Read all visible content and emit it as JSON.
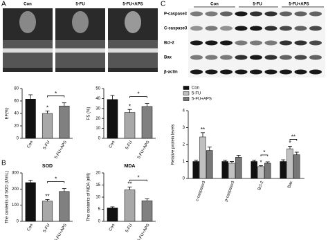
{
  "panels": [
    "A",
    "B",
    "C"
  ],
  "images": {
    "labels": [
      "Con",
      "5-FU",
      "5-FU+APS"
    ]
  },
  "blot": {
    "groups": [
      "Con",
      "5-FU",
      "5-FU+APS"
    ],
    "rows": [
      "P-caspase3",
      "C-caspase3",
      "Bcl-2",
      "Bax",
      "β-actin"
    ]
  },
  "chart_data": [
    {
      "type": "bar",
      "ylabel": "EF(%)",
      "categories": [
        "Con",
        "5-FU",
        "5-FU+APS"
      ],
      "values": [
        63,
        40,
        52
      ],
      "errors": [
        7,
        4,
        5
      ],
      "colors": [
        "#111111",
        "#a8a8a8",
        "#808080"
      ],
      "ylim": [
        0,
        80
      ],
      "yticks": [
        0,
        20,
        40,
        60,
        80
      ],
      "annotations": [
        "*",
        "*"
      ]
    },
    {
      "type": "bar",
      "ylabel": "FS (%)",
      "categories": [
        "Con",
        "5-FU",
        "5-FU+APS"
      ],
      "values": [
        39,
        26,
        32
      ],
      "errors": [
        4,
        3,
        3
      ],
      "colors": [
        "#111111",
        "#a8a8a8",
        "#808080"
      ],
      "ylim": [
        0,
        50
      ],
      "yticks": [
        0,
        10,
        20,
        30,
        40,
        50
      ],
      "annotations": [
        "*",
        "*"
      ]
    },
    {
      "type": "bar",
      "title": "SOD",
      "ylabel": "The contents of SOD (U/mL)",
      "categories": [
        "Con",
        "5-FU",
        "5-FU+APS"
      ],
      "values": [
        240,
        125,
        185
      ],
      "errors": [
        15,
        10,
        18
      ],
      "colors": [
        "#111111",
        "#a8a8a8",
        "#808080"
      ],
      "ylim": [
        0,
        300
      ],
      "yticks": [
        0,
        100,
        200,
        300
      ],
      "annotations": [
        "**",
        "*"
      ]
    },
    {
      "type": "bar",
      "title": "MDA",
      "ylabel": "The contents of MDA (nM)",
      "categories": [
        "Con",
        "5-FU",
        "5-FU+APS"
      ],
      "values": [
        5.5,
        13,
        8.5
      ],
      "errors": [
        0.5,
        1.2,
        0.8
      ],
      "colors": [
        "#111111",
        "#a8a8a8",
        "#808080"
      ],
      "ylim": [
        0,
        20
      ],
      "yticks": [
        0,
        5,
        10,
        15,
        20
      ],
      "annotations": [
        "**",
        "*"
      ]
    },
    {
      "type": "grouped-bar",
      "ylabel": "Relative protein levels",
      "categories": [
        "c-caspase3",
        "p-caspase3",
        "Bcl-2",
        "Bax"
      ],
      "series": [
        {
          "name": "Con",
          "color": "#111111",
          "values": [
            1.0,
            1.0,
            1.0,
            1.0
          ],
          "errors": [
            0.08,
            0.08,
            0.08,
            0.1
          ]
        },
        {
          "name": "5-FU",
          "color": "#c0c0c0",
          "values": [
            2.45,
            0.9,
            0.7,
            1.75
          ],
          "errors": [
            0.25,
            0.1,
            0.06,
            0.15
          ]
        },
        {
          "name": "5-FU+APS",
          "color": "#777777",
          "values": [
            1.65,
            1.25,
            0.9,
            1.4
          ],
          "errors": [
            0.2,
            0.12,
            0.08,
            0.15
          ]
        }
      ],
      "ylim": [
        0,
        4
      ],
      "yticks": [
        0,
        1,
        2,
        3,
        4
      ],
      "annotations": [
        "**",
        "*",
        "*",
        "*",
        "**"
      ]
    }
  ]
}
